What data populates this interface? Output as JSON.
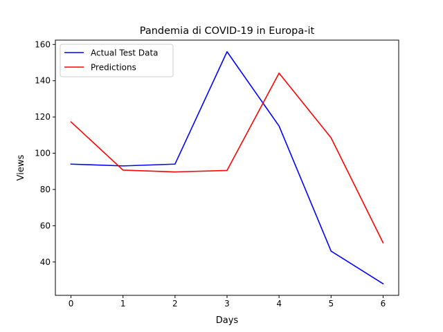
{
  "chart_data": {
    "type": "line",
    "title": "Pandemia di COVID-19 in Europa-it",
    "xlabel": "Days",
    "ylabel": "Views",
    "x": [
      0,
      1,
      2,
      3,
      4,
      5,
      6
    ],
    "xlim": [
      -0.3,
      6.3
    ],
    "ylim": [
      21.6,
      162.4
    ],
    "xticks": [
      0,
      1,
      2,
      3,
      4,
      5,
      6
    ],
    "yticks": [
      40,
      60,
      80,
      100,
      120,
      140,
      160
    ],
    "grid": false,
    "legend_placement": "top-left",
    "series": [
      {
        "name": "Actual Test Data",
        "color": "#0000ff",
        "values": [
          94,
          93,
          94,
          156,
          115,
          46,
          28
        ]
      },
      {
        "name": "Predictions",
        "color": "#ff0000",
        "values": [
          117.3,
          90.7,
          89.7,
          90.5,
          144.2,
          108.5,
          50.6
        ]
      }
    ]
  }
}
